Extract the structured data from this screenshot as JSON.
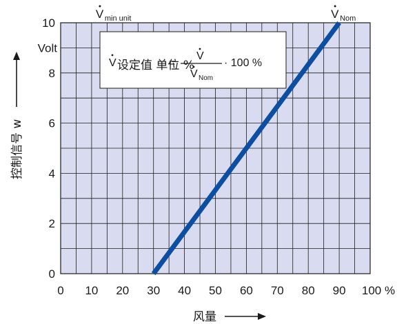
{
  "chart_data": {
    "type": "line",
    "x_ticks": [
      0,
      10,
      20,
      30,
      40,
      50,
      60,
      70,
      80,
      90,
      100
    ],
    "x_unit": "%",
    "y_ticks": [
      0,
      2,
      4,
      6,
      8,
      10
    ],
    "y_unit": "Volt",
    "xlim": [
      0,
      100
    ],
    "ylim": [
      0,
      10
    ],
    "grid": true,
    "ylabel": "控制信号 w",
    "xlabel": "风量",
    "series": [
      {
        "x": [
          30,
          90
        ],
        "y": [
          0,
          10
        ],
        "color": "#0b4ea2"
      }
    ],
    "annotations": {
      "v_min": {
        "symbol": "V",
        "sub": "min unit"
      },
      "v_nom": {
        "symbol": "V",
        "sub": "Nom"
      }
    },
    "formula": {
      "lhs_symbol": "V",
      "lhs_sub": "设定值 单位 %",
      "equals": "=",
      "numerator": "V",
      "denominator": "V",
      "denominator_sub": "Nom",
      "tail": "· 100 %"
    },
    "colors": {
      "plot_bg": "#d9dcf0",
      "grid": "#1a1a1a",
      "line": "#0b4ea2"
    }
  }
}
